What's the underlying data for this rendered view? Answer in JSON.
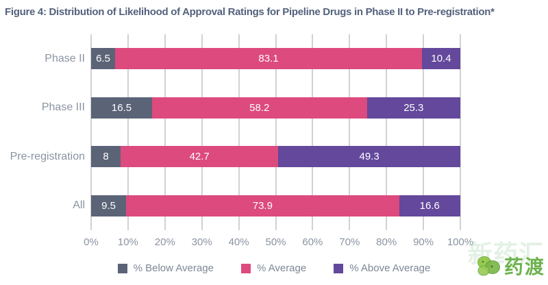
{
  "title": "Figure 4: Distribution of Likelihood of Approval Ratings for Pipeline Drugs in Phase II to Pre-registration*",
  "chart_data": {
    "type": "bar",
    "orientation": "horizontal-stacked",
    "categories": [
      "Phase II",
      "Phase III",
      "Pre-registration",
      "All"
    ],
    "series": [
      {
        "name": "% Below Average",
        "color": "#5b6377",
        "values": [
          6.5,
          16.5,
          8,
          9.5
        ]
      },
      {
        "name": "% Average",
        "color": "#dc4a7e",
        "values": [
          83.1,
          58.2,
          42.7,
          73.9
        ]
      },
      {
        "name": "% Above Average",
        "color": "#63489b",
        "values": [
          10.4,
          25.3,
          49.3,
          16.6
        ]
      }
    ],
    "x_ticks": [
      "0%",
      "10%",
      "20%",
      "30%",
      "40%",
      "50%",
      "60%",
      "70%",
      "80%",
      "90%",
      "100%"
    ],
    "xlim": [
      0,
      100
    ],
    "grid": "vertical",
    "value_labels": "inside-white",
    "legend_position": "bottom-center"
  },
  "colors": {
    "title_text": "#53617c",
    "axis_text": "#8a93a2",
    "legend_text": "#7d8795",
    "gridline": "#a3a3a8"
  },
  "watermark": {
    "logo_text": "药渡",
    "background_text": "新药汇",
    "logo_color": "#6db24e"
  }
}
